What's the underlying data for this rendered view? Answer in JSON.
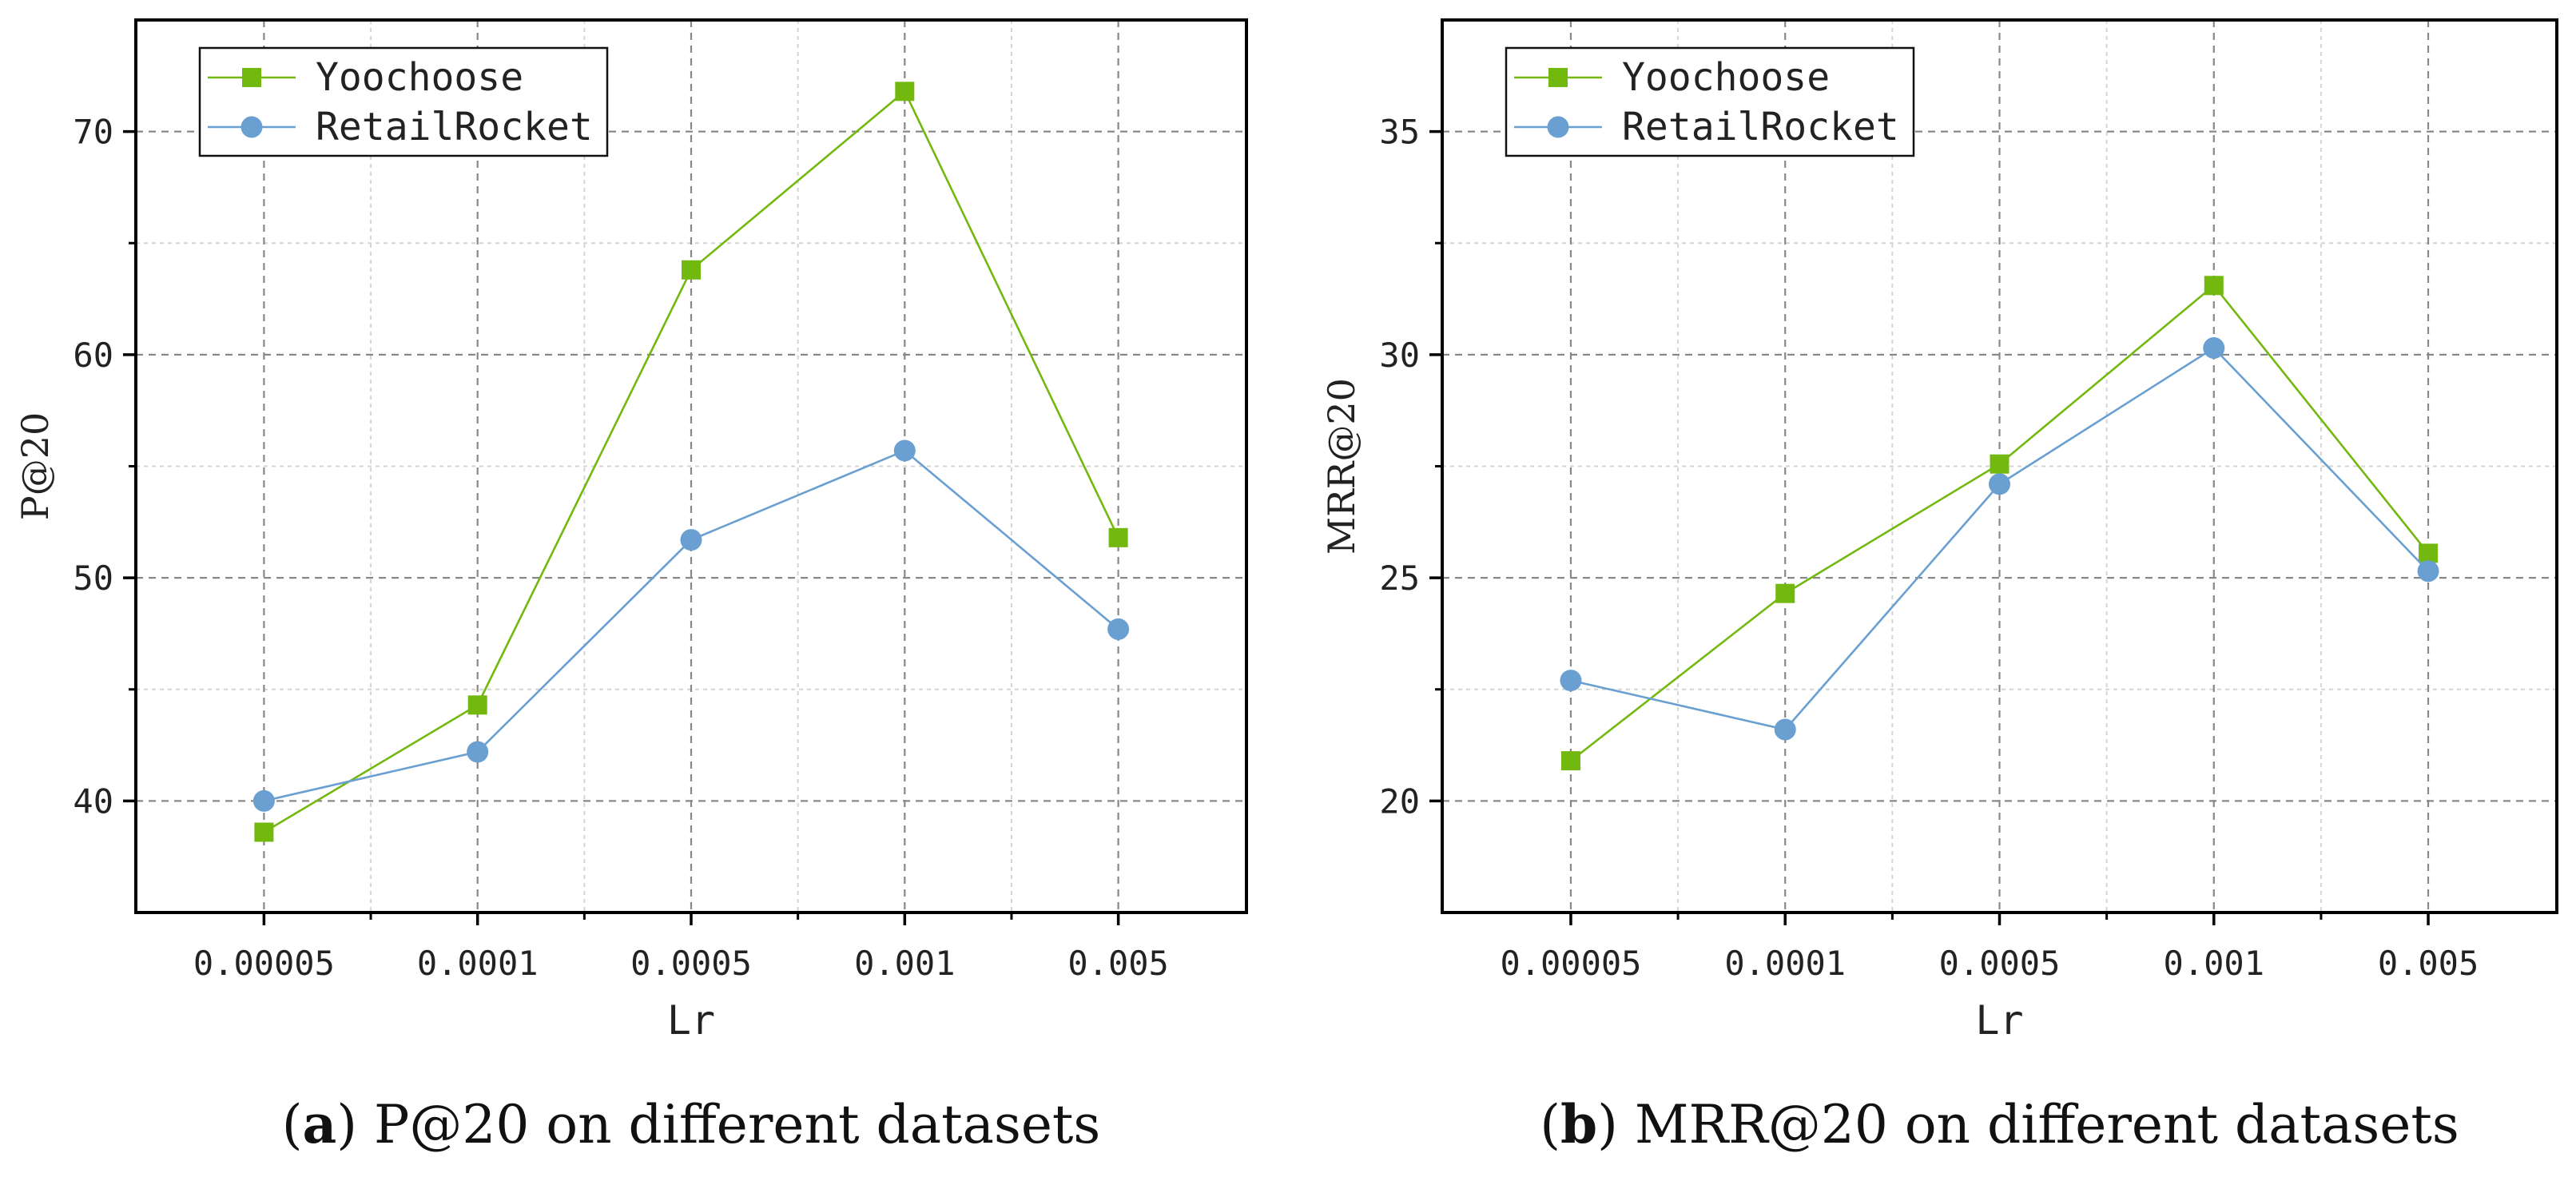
{
  "colors": {
    "yoochoose": "#73b80f",
    "retailrocket": "#6a9fd1",
    "grid_major": "#888888",
    "grid_minor": "#d4d4d4",
    "axis": "#000000"
  },
  "chart_data": [
    {
      "type": "line",
      "panel": "a",
      "caption_prefix": "(",
      "caption_letter": "a",
      "caption_rest": ") P@20 on different datasets",
      "categories": [
        "0.00005",
        "0.0001",
        "0.0005",
        "0.001",
        "0.005"
      ],
      "xlabel": "Lr",
      "ylabel": "P@20",
      "ylim": [
        35,
        75
      ],
      "yticks": [
        40,
        50,
        60,
        70
      ],
      "yticks_minor": [
        45,
        55,
        65
      ],
      "series": [
        {
          "name": "Yoochoose",
          "key": "yoochoose",
          "marker": "square",
          "values": [
            38.6,
            44.3,
            63.8,
            71.8,
            51.8
          ]
        },
        {
          "name": "RetailRocket",
          "key": "retailrocket",
          "marker": "circle",
          "values": [
            40.0,
            42.2,
            51.7,
            55.7,
            47.7
          ]
        }
      ],
      "legend": "top-left",
      "grid": true
    },
    {
      "type": "line",
      "panel": "b",
      "caption_prefix": "(",
      "caption_letter": "b",
      "caption_rest": ") MRR@20 on different datasets",
      "categories": [
        "0.00005",
        "0.0001",
        "0.0005",
        "0.001",
        "0.005"
      ],
      "xlabel": "Lr",
      "ylabel": "MRR@20",
      "ylim": [
        17.5,
        37.5
      ],
      "yticks": [
        20,
        25,
        30,
        35
      ],
      "yticks_minor": [
        22.5,
        27.5,
        32.5
      ],
      "series": [
        {
          "name": "Yoochoose",
          "key": "yoochoose",
          "marker": "square",
          "values": [
            20.9,
            24.65,
            27.55,
            31.55,
            25.55
          ]
        },
        {
          "name": "RetailRocket",
          "key": "retailrocket",
          "marker": "circle",
          "values": [
            22.7,
            21.6,
            27.1,
            30.15,
            25.15
          ]
        }
      ],
      "legend": "top-left",
      "grid": true
    }
  ]
}
